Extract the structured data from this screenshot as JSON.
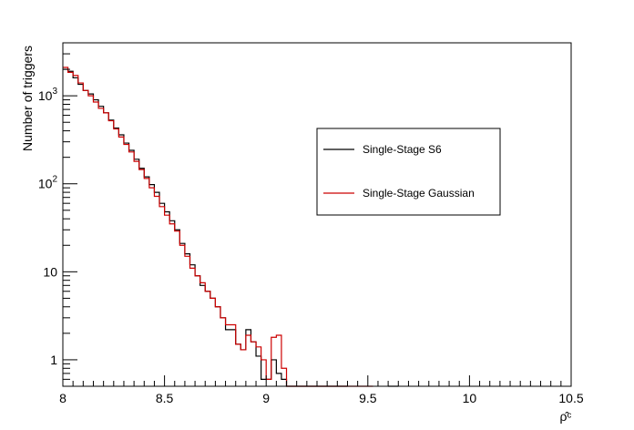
{
  "chart_data": {
    "type": "line",
    "drawstyle": "step-histogram",
    "title": "",
    "xlabel": "ρ̂ᶜ",
    "ylabel": "Number of triggers",
    "xlim": [
      8,
      10.5
    ],
    "ylim": [
      0.5,
      4000
    ],
    "yscale": "log",
    "grid": false,
    "bin_width": 0.025,
    "x_ticks": [
      {
        "value": 8,
        "label": "8"
      },
      {
        "value": 8.5,
        "label": "8.5"
      },
      {
        "value": 9,
        "label": "9"
      },
      {
        "value": 9.5,
        "label": "9.5"
      },
      {
        "value": 10,
        "label": "10"
      },
      {
        "value": 10.5,
        "label": "10.5"
      }
    ],
    "y_ticks": [
      {
        "value": 1,
        "label": "1"
      },
      {
        "value": 10,
        "label": "10"
      },
      {
        "value": 100,
        "label": "10",
        "exponent": "2"
      },
      {
        "value": 1000,
        "label": "10",
        "exponent": "3"
      }
    ],
    "legend": {
      "position": "right",
      "entries": [
        {
          "name": "Single-Stage S6",
          "color": "#000000"
        },
        {
          "name": "Single-Stage Gaussian",
          "color": "#cc0000"
        }
      ]
    },
    "series": [
      {
        "name": "Single-Stage S6",
        "color": "#000000",
        "x": [
          8.0,
          8.025,
          8.05,
          8.075,
          8.1,
          8.125,
          8.15,
          8.175,
          8.2,
          8.225,
          8.25,
          8.275,
          8.3,
          8.325,
          8.35,
          8.375,
          8.4,
          8.425,
          8.45,
          8.475,
          8.5,
          8.525,
          8.55,
          8.575,
          8.6,
          8.625,
          8.65,
          8.675,
          8.7,
          8.725,
          8.75,
          8.775,
          8.8,
          8.825,
          8.85,
          8.875,
          8.9,
          8.925,
          8.95,
          8.975,
          9.0,
          9.025,
          9.05,
          9.075,
          9.1,
          9.125,
          9.15,
          9.175,
          9.2,
          9.225,
          9.25,
          9.275,
          9.3,
          9.325,
          9.35,
          9.375,
          9.6,
          9.625
        ],
        "values": [
          2000,
          1900,
          1600,
          1350,
          1150,
          1050,
          900,
          760,
          640,
          530,
          430,
          360,
          290,
          240,
          190,
          150,
          120,
          98,
          80,
          60,
          48,
          38,
          30,
          21,
          16,
          12,
          9,
          7,
          6,
          5,
          4,
          3,
          2.2,
          2.2,
          1.5,
          1.3,
          2.2,
          1.6,
          1.1,
          0.6,
          0.6,
          1,
          0.7,
          0.6,
          0.5,
          0.5,
          0.5,
          0.5,
          0.5,
          0.5,
          0.5,
          0.5,
          0.5,
          0.5,
          0.5,
          0.5,
          0.5,
          0.5
        ]
      },
      {
        "name": "Single-Stage Gaussian",
        "color": "#cc0000",
        "x": [
          8.0,
          8.025,
          8.05,
          8.075,
          8.1,
          8.125,
          8.15,
          8.175,
          8.2,
          8.225,
          8.25,
          8.275,
          8.3,
          8.325,
          8.35,
          8.375,
          8.4,
          8.425,
          8.45,
          8.475,
          8.5,
          8.525,
          8.55,
          8.575,
          8.6,
          8.625,
          8.65,
          8.675,
          8.7,
          8.725,
          8.75,
          8.775,
          8.8,
          8.825,
          8.85,
          8.875,
          8.9,
          8.925,
          8.95,
          8.975,
          9.0,
          9.025,
          9.05,
          9.075,
          9.1,
          9.125,
          9.15,
          9.175,
          9.2,
          9.225,
          9.25,
          9.275,
          9.3,
          9.325,
          9.35,
          9.375,
          9.4,
          9.425,
          9.45,
          9.475,
          9.5
        ],
        "values": [
          2100,
          1850,
          1700,
          1400,
          1150,
          1000,
          850,
          720,
          640,
          520,
          420,
          340,
          280,
          230,
          180,
          145,
          115,
          90,
          72,
          55,
          44,
          35,
          29,
          20,
          15,
          11,
          9,
          7.5,
          6,
          5,
          4,
          3,
          2.5,
          2.5,
          1.5,
          1.3,
          1.9,
          1.6,
          1.4,
          1,
          0.6,
          1.8,
          1.9,
          0.8,
          0.5,
          0.5,
          0.5,
          0.5,
          0.5,
          0.5,
          0.5,
          0.5,
          0.5,
          0.5,
          0.5,
          0.5,
          0.5,
          0.5,
          0.5,
          0.5,
          0.5
        ]
      }
    ]
  }
}
